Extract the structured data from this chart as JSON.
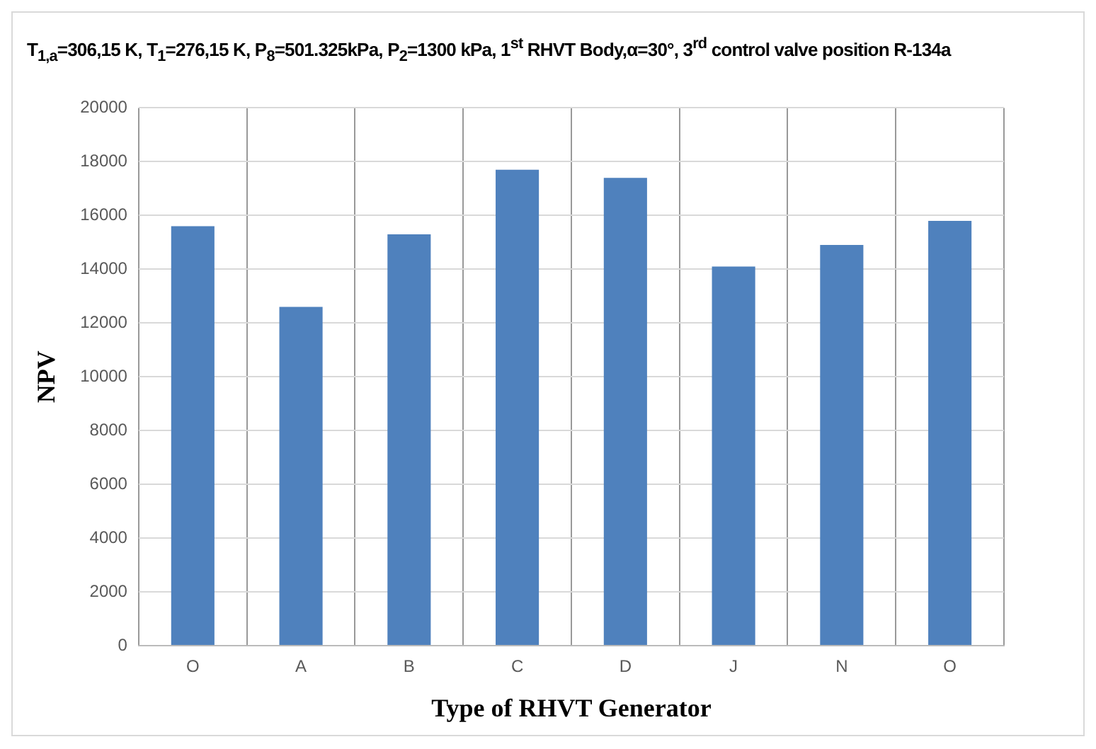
{
  "chart_data": {
    "type": "bar",
    "title": "T$_{1,a}$=306,15 K, T$_{1}$=276,15 K, P$_{8}$=501.325kPa, P$_{2}$=1300 kPa, 1$^{st}$ RHVT Body,α=30°, 3$^{rd}$ control valve position R-134a",
    "xlabel": "Type of RHVT Generator",
    "ylabel": "NPV",
    "categories": [
      "O",
      "A",
      "B",
      "C",
      "D",
      "J",
      "N",
      "O"
    ],
    "values": [
      15600,
      12600,
      15300,
      17700,
      17400,
      14100,
      14900,
      15800
    ],
    "color": "#4f81bd",
    "ylim": [
      0,
      20000
    ],
    "yticks": [
      0,
      2000,
      4000,
      6000,
      8000,
      10000,
      12000,
      14000,
      16000,
      18000,
      20000
    ],
    "grid": true,
    "legend": false
  }
}
